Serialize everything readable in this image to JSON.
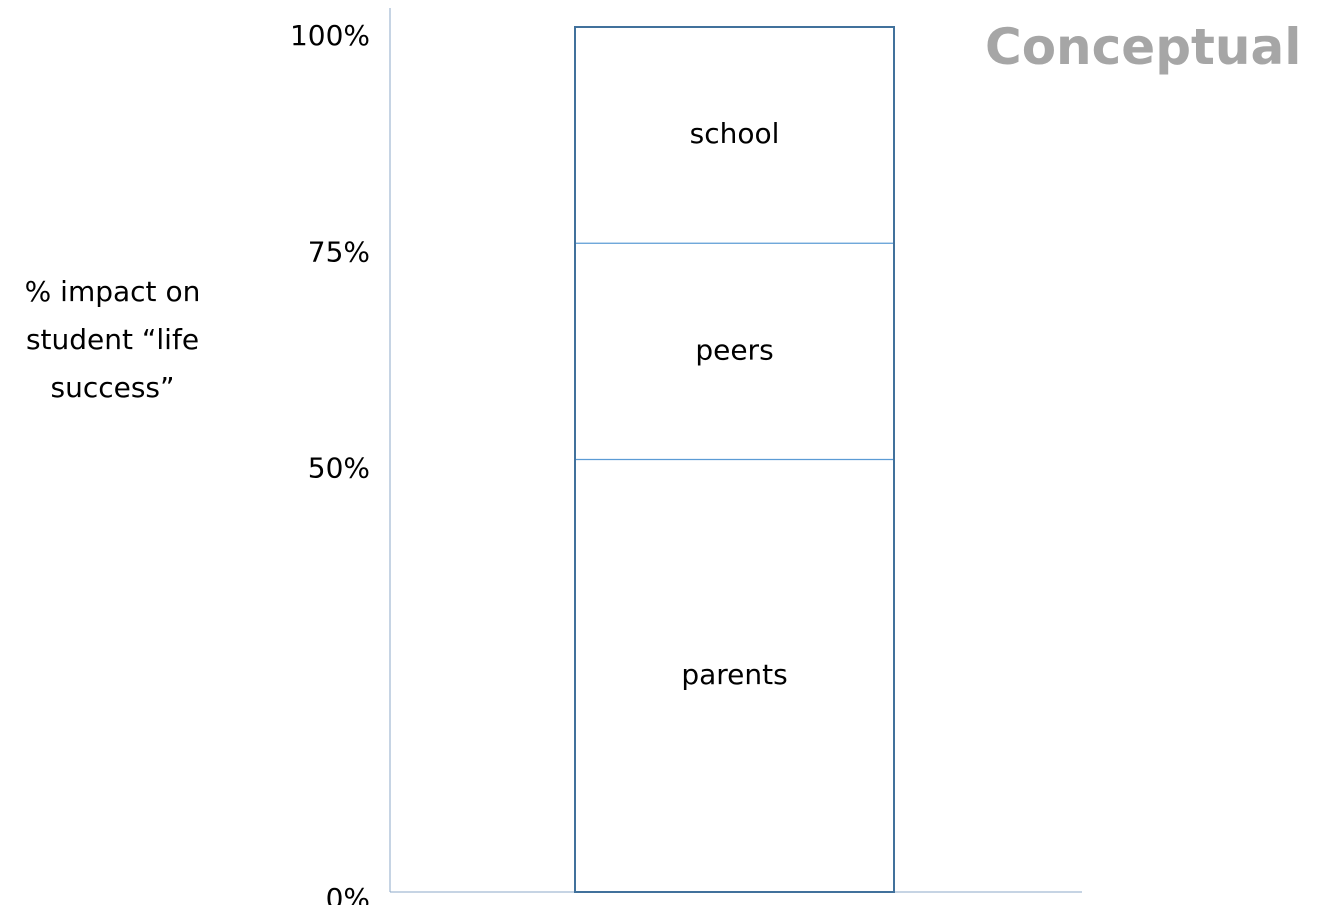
{
  "chart_data": {
    "type": "bar",
    "stacked": true,
    "title": "Conceptual",
    "ylabel_lines": [
      "% impact on",
      "student “life",
      "success”"
    ],
    "ylim": [
      0,
      100
    ],
    "yticks": [
      {
        "value": 0,
        "label": "0%"
      },
      {
        "value": 50,
        "label": "50%"
      },
      {
        "value": 75,
        "label": "75%"
      },
      {
        "value": 100,
        "label": "100%"
      }
    ],
    "segments": [
      {
        "label": "parents",
        "from": 0,
        "to": 50
      },
      {
        "label": "peers",
        "from": 50,
        "to": 75
      },
      {
        "label": "school",
        "from": 75,
        "to": 100
      }
    ],
    "grid": false,
    "colors": {
      "axis": "#8ea9c8",
      "bar_edge": "#41719c",
      "divider": "#5b9bd5",
      "title": "#a6a6a6"
    }
  }
}
